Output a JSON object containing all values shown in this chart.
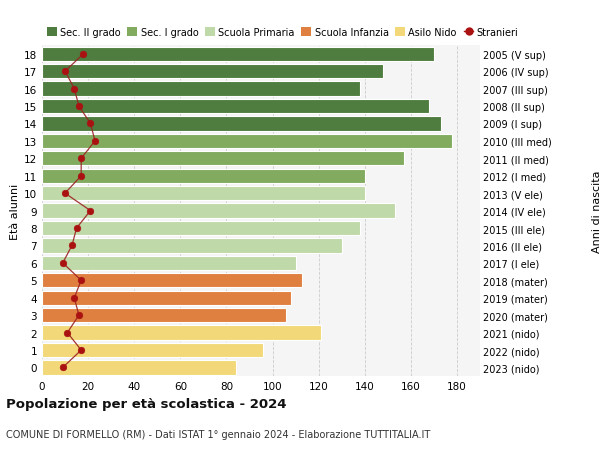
{
  "ages": [
    18,
    17,
    16,
    15,
    14,
    13,
    12,
    11,
    10,
    9,
    8,
    7,
    6,
    5,
    4,
    3,
    2,
    1,
    0
  ],
  "years": [
    "2005 (V sup)",
    "2006 (IV sup)",
    "2007 (III sup)",
    "2008 (II sup)",
    "2009 (I sup)",
    "2010 (III med)",
    "2011 (II med)",
    "2012 (I med)",
    "2013 (V ele)",
    "2014 (IV ele)",
    "2015 (III ele)",
    "2016 (II ele)",
    "2017 (I ele)",
    "2018 (mater)",
    "2019 (mater)",
    "2020 (mater)",
    "2021 (nido)",
    "2022 (nido)",
    "2023 (nido)"
  ],
  "bar_values": [
    170,
    148,
    138,
    168,
    173,
    178,
    157,
    140,
    140,
    153,
    138,
    130,
    110,
    113,
    108,
    106,
    121,
    96,
    84
  ],
  "bar_colors": [
    "#4f7c3f",
    "#4f7c3f",
    "#4f7c3f",
    "#4f7c3f",
    "#4f7c3f",
    "#82ab60",
    "#82ab60",
    "#82ab60",
    "#c0d9a8",
    "#c0d9a8",
    "#c0d9a8",
    "#c0d9a8",
    "#c0d9a8",
    "#e08040",
    "#e08040",
    "#e08040",
    "#f2d878",
    "#f2d878",
    "#f2d878"
  ],
  "stranieri_values": [
    18,
    10,
    14,
    16,
    21,
    23,
    17,
    17,
    10,
    21,
    15,
    13,
    9,
    17,
    14,
    16,
    11,
    17,
    9
  ],
  "legend_labels": [
    "Sec. II grado",
    "Sec. I grado",
    "Scuola Primaria",
    "Scuola Infanzia",
    "Asilo Nido",
    "Stranieri"
  ],
  "legend_colors": [
    "#4f7c3f",
    "#82ab60",
    "#c0d9a8",
    "#e08040",
    "#f2d878",
    "#aa1111"
  ],
  "ylabel_left": "Età alunni",
  "ylabel_right": "Anni di nascita",
  "title": "Popolazione per età scolastica - 2024",
  "subtitle": "COMUNE DI FORMELLO (RM) - Dati ISTAT 1° gennaio 2024 - Elaborazione TUTTITALIA.IT",
  "xlim": [
    0,
    190
  ],
  "xticks": [
    0,
    20,
    40,
    60,
    80,
    100,
    120,
    140,
    160,
    180
  ],
  "bg_color": "#ffffff",
  "plot_bg_color": "#f5f5f5",
  "grid_color": "#cccccc"
}
